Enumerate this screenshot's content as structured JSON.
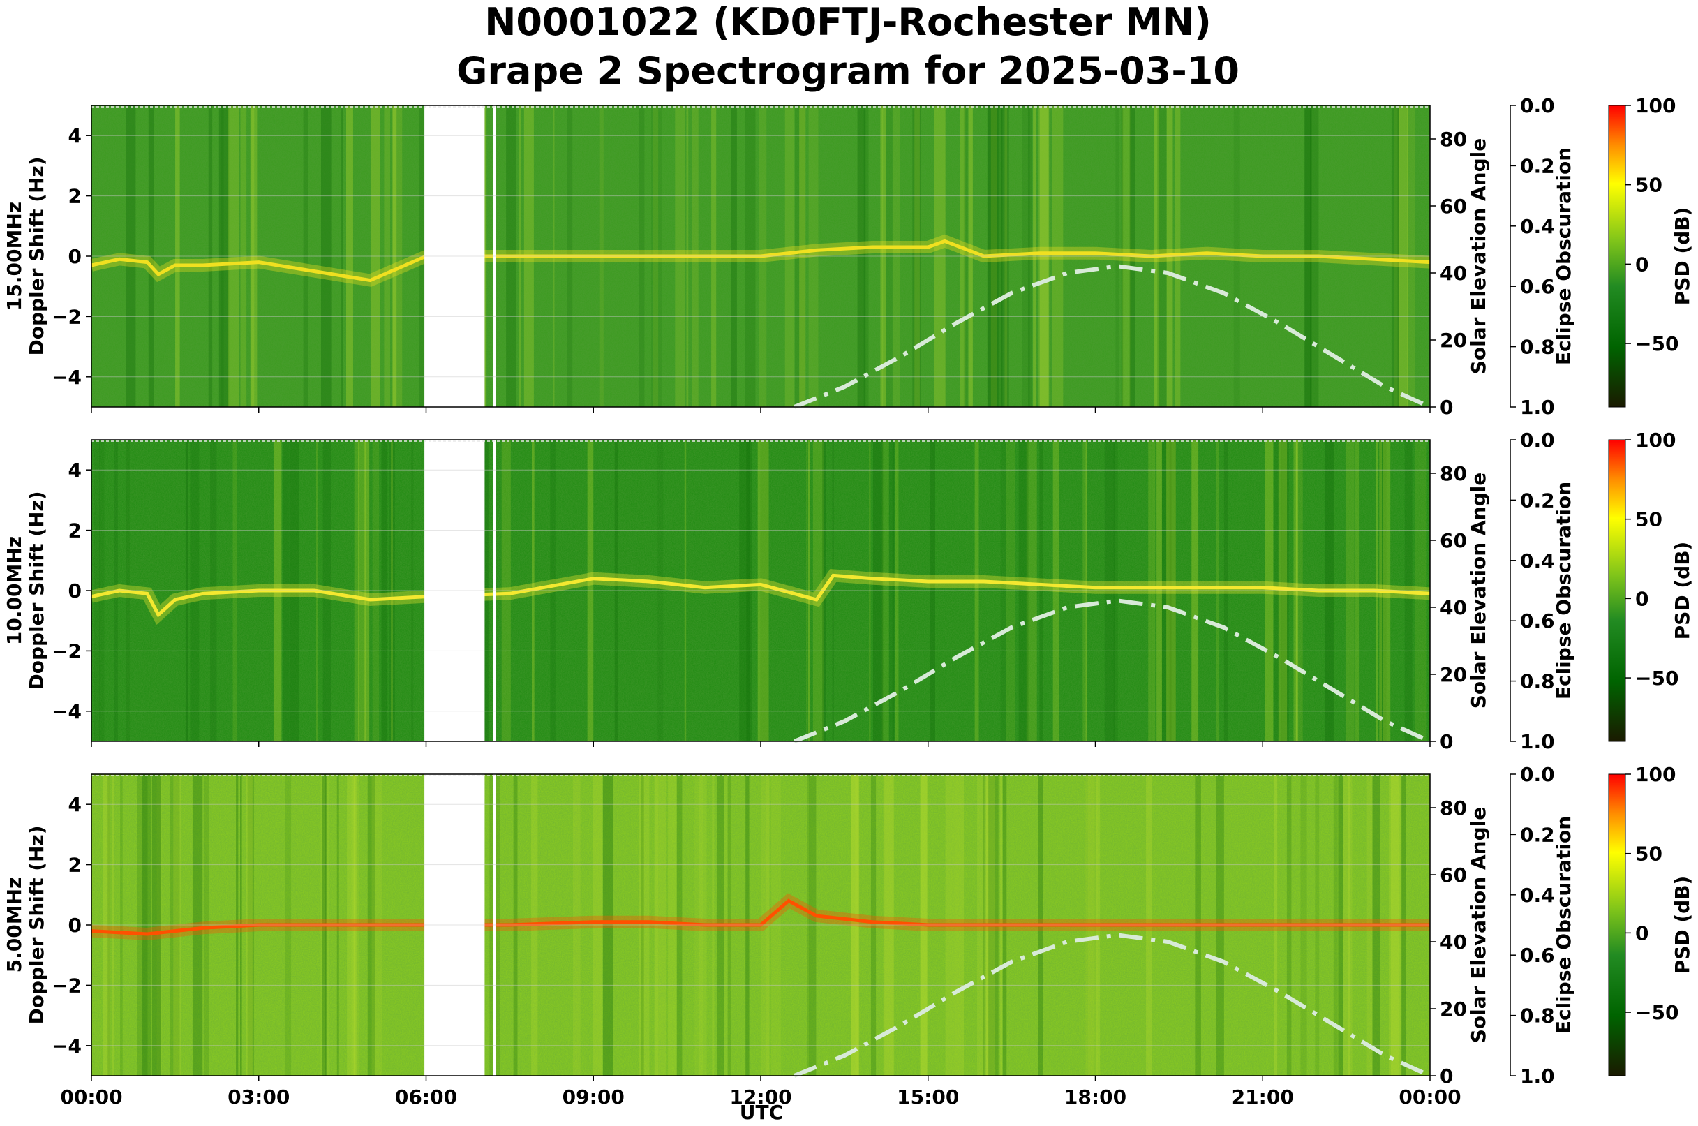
{
  "chart_data": {
    "type": "heatmap",
    "title_line1": "N0001022 (KD0FTJ-Rochester MN)",
    "title_line2": "Grape 2 Spectrogram for 2025-03-10",
    "xlabel": "UTC",
    "x_ticks": [
      "00:00",
      "03:00",
      "06:00",
      "09:00",
      "12:00",
      "15:00",
      "18:00",
      "21:00",
      "00:00"
    ],
    "xlim_hours": [
      0,
      24
    ],
    "ylabel": "Doppler Shift (Hz)",
    "ylim": [
      -5,
      5
    ],
    "y_ticks": [
      "−4",
      "−2",
      "0",
      "2",
      "4"
    ],
    "y_tick_values": [
      -4,
      -2,
      0,
      2,
      4
    ],
    "right_axis_label": "Solar Elevation Angle",
    "right_ylim": [
      0,
      90
    ],
    "right_ticks": [
      "0",
      "20",
      "40",
      "60",
      "80"
    ],
    "right_tick_values": [
      0,
      20,
      40,
      60,
      80
    ],
    "eclipse_label": "Eclipse Obscuration",
    "eclipse_ylim": [
      0,
      1
    ],
    "eclipse_ticks": [
      "0.0",
      "0.2",
      "0.4",
      "0.6",
      "0.8",
      "1.0"
    ],
    "eclipse_tick_values": [
      0,
      0.2,
      0.4,
      0.6,
      0.8,
      1.0
    ],
    "colorbar_label": "PSD (dB)",
    "colorbar_range": [
      -90,
      100
    ],
    "colorbar_ticks": [
      "100",
      "50",
      "0",
      "−50"
    ],
    "colorbar_tick_values": [
      100,
      50,
      0,
      -50
    ],
    "colormap": [
      "#1a1a00",
      "#006400",
      "#228b22",
      "#7fc41a",
      "#ffff00",
      "#ff8c00",
      "#ff0000"
    ],
    "data_gaps_hours": [
      [
        5.97,
        7.05
      ],
      [
        7.2,
        7.25
      ]
    ],
    "solar_elevation_curve": {
      "x_hours": [
        12.6,
        13.5,
        14.5,
        15.5,
        16.5,
        17.5,
        18.4,
        19.3,
        20.3,
        21.3,
        22.3,
        23.2,
        24.0
      ],
      "y_degrees": [
        0,
        6,
        15,
        25,
        34,
        40,
        42,
        40,
        34,
        25,
        15,
        6,
        0
      ],
      "color": "#d8ead8"
    },
    "panels": [
      {
        "freq_label": "15.00MHz",
        "base": "#3a9a1e",
        "noise": "#6ab82a",
        "trace_x_hours": [
          0,
          0.5,
          1,
          1.2,
          1.5,
          2,
          3,
          4,
          5,
          6,
          7.5,
          9,
          11,
          12,
          13,
          14,
          15,
          15.3,
          16,
          17,
          18,
          19,
          20,
          21,
          22,
          23,
          24
        ],
        "trace_y_hz": [
          -0.3,
          -0.1,
          -0.2,
          -0.6,
          -0.3,
          -0.3,
          -0.2,
          -0.5,
          -0.8,
          0,
          0,
          0,
          0,
          0,
          0.2,
          0.3,
          0.3,
          0.5,
          0,
          0.1,
          0.1,
          0,
          0.1,
          0,
          0,
          -0.1,
          -0.2
        ],
        "trace_color": "#f0e020"
      },
      {
        "freq_label": "10.00MHz",
        "base": "#1e8a10",
        "noise": "#3aa018",
        "trace_x_hours": [
          0,
          0.5,
          1,
          1.2,
          1.5,
          2,
          3,
          4,
          5,
          6,
          7.5,
          9,
          10,
          11,
          12,
          13,
          13.3,
          14,
          15,
          16,
          17,
          18,
          19,
          20,
          21,
          22,
          23,
          24
        ],
        "trace_y_hz": [
          -0.2,
          0,
          -0.1,
          -0.8,
          -0.3,
          -0.1,
          0,
          0,
          -0.3,
          -0.2,
          -0.1,
          0.4,
          0.3,
          0.1,
          0.2,
          -0.3,
          0.5,
          0.4,
          0.3,
          0.3,
          0.2,
          0.1,
          0.1,
          0.1,
          0.1,
          0,
          0,
          -0.1
        ],
        "trace_color": "#f4e830"
      },
      {
        "freq_label": "5.00MHz",
        "base": "#8ccc20",
        "noise": "#a8d828",
        "trace_x_hours": [
          0,
          1,
          2,
          3,
          4,
          5,
          6,
          7.5,
          9,
          10,
          11,
          12,
          12.5,
          13,
          14,
          15,
          16,
          18,
          20,
          22,
          24
        ],
        "trace_y_hz": [
          -0.2,
          -0.3,
          -0.1,
          0,
          0,
          0,
          0,
          0,
          0.1,
          0.1,
          0,
          0,
          0.8,
          0.3,
          0.1,
          0,
          0,
          0,
          0,
          0,
          0
        ],
        "trace_color": "#ff5000"
      }
    ]
  }
}
